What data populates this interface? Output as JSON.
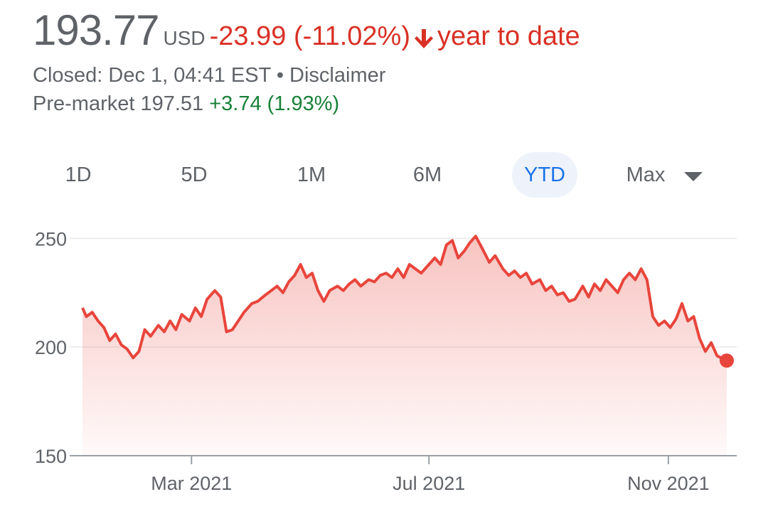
{
  "quote": {
    "price": "193.77",
    "currency": "USD",
    "change": "-23.99 (-11.02%)",
    "period": "year to date",
    "closed": "Closed: Dec 1, 04:41 EST",
    "separator": "•",
    "disclaimer": "Disclaimer",
    "premarket_label": "Pre-market 197.51",
    "premarket_change": "+3.74 (1.93%)"
  },
  "colors": {
    "negative": "#d93025",
    "positive": "#188038",
    "active_tab": "#1a73e8",
    "line": "#e8453c"
  },
  "tabs": [
    {
      "label": "1D"
    },
    {
      "label": "5D"
    },
    {
      "label": "1M"
    },
    {
      "label": "6M"
    },
    {
      "label": "YTD",
      "active": true
    },
    {
      "label": "Max"
    }
  ],
  "chart_data": {
    "type": "area",
    "ylim": [
      150,
      255
    ],
    "yticks": [
      {
        "value": 250,
        "label": "250"
      },
      {
        "value": 200,
        "label": "200"
      },
      {
        "value": 150,
        "label": "150"
      }
    ],
    "xlim": [
      "2021-01-04",
      "2021-12-01"
    ],
    "xticks": [
      {
        "date": "2021-03-01",
        "label": "Mar 2021"
      },
      {
        "date": "2021-07-01",
        "label": "Jul 2021"
      },
      {
        "date": "2021-11-01",
        "label": "Nov 2021"
      }
    ],
    "grid": true,
    "series": [
      {
        "values": [
          [
            "2021-01-04",
            218
          ],
          [
            "2021-01-06",
            214
          ],
          [
            "2021-01-09",
            216
          ],
          [
            "2021-01-12",
            212
          ],
          [
            "2021-01-15",
            209
          ],
          [
            "2021-01-18",
            203
          ],
          [
            "2021-01-21",
            206
          ],
          [
            "2021-01-24",
            201
          ],
          [
            "2021-01-27",
            199
          ],
          [
            "2021-01-30",
            195
          ],
          [
            "2021-02-02",
            198
          ],
          [
            "2021-02-05",
            208
          ],
          [
            "2021-02-08",
            205
          ],
          [
            "2021-02-12",
            210
          ],
          [
            "2021-02-15",
            207
          ],
          [
            "2021-02-18",
            212
          ],
          [
            "2021-02-21",
            208
          ],
          [
            "2021-02-24",
            215
          ],
          [
            "2021-02-28",
            212
          ],
          [
            "2021-03-03",
            218
          ],
          [
            "2021-03-06",
            214
          ],
          [
            "2021-03-09",
            222
          ],
          [
            "2021-03-13",
            226
          ],
          [
            "2021-03-16",
            223
          ],
          [
            "2021-03-19",
            207
          ],
          [
            "2021-03-22",
            208
          ],
          [
            "2021-03-25",
            212
          ],
          [
            "2021-03-28",
            216
          ],
          [
            "2021-04-01",
            220
          ],
          [
            "2021-04-04",
            221
          ],
          [
            "2021-04-08",
            224
          ],
          [
            "2021-04-11",
            226
          ],
          [
            "2021-04-14",
            228
          ],
          [
            "2021-04-17",
            225
          ],
          [
            "2021-04-20",
            230
          ],
          [
            "2021-04-23",
            233
          ],
          [
            "2021-04-26",
            238
          ],
          [
            "2021-04-29",
            232
          ],
          [
            "2021-05-02",
            234
          ],
          [
            "2021-05-05",
            226
          ],
          [
            "2021-05-08",
            221
          ],
          [
            "2021-05-11",
            226
          ],
          [
            "2021-05-15",
            228
          ],
          [
            "2021-05-18",
            226
          ],
          [
            "2021-05-21",
            229
          ],
          [
            "2021-05-24",
            231
          ],
          [
            "2021-05-27",
            228
          ],
          [
            "2021-05-31",
            231
          ],
          [
            "2021-06-03",
            230
          ],
          [
            "2021-06-06",
            233
          ],
          [
            "2021-06-09",
            234
          ],
          [
            "2021-06-12",
            232
          ],
          [
            "2021-06-15",
            236
          ],
          [
            "2021-06-18",
            232
          ],
          [
            "2021-06-21",
            238
          ],
          [
            "2021-06-24",
            236
          ],
          [
            "2021-06-27",
            234
          ],
          [
            "2021-07-01",
            238
          ],
          [
            "2021-07-04",
            241
          ],
          [
            "2021-07-07",
            238
          ],
          [
            "2021-07-10",
            247
          ],
          [
            "2021-07-13",
            249
          ],
          [
            "2021-07-16",
            241
          ],
          [
            "2021-07-19",
            244
          ],
          [
            "2021-07-22",
            248
          ],
          [
            "2021-07-25",
            251
          ],
          [
            "2021-07-28",
            246
          ],
          [
            "2021-08-01",
            239
          ],
          [
            "2021-08-04",
            242
          ],
          [
            "2021-08-08",
            236
          ],
          [
            "2021-08-11",
            233
          ],
          [
            "2021-08-14",
            235
          ],
          [
            "2021-08-17",
            232
          ],
          [
            "2021-08-20",
            234
          ],
          [
            "2021-08-23",
            229
          ],
          [
            "2021-08-27",
            231
          ],
          [
            "2021-08-30",
            226
          ],
          [
            "2021-09-02",
            228
          ],
          [
            "2021-09-05",
            224
          ],
          [
            "2021-09-08",
            225
          ],
          [
            "2021-09-11",
            221
          ],
          [
            "2021-09-14",
            222
          ],
          [
            "2021-09-18",
            228
          ],
          [
            "2021-09-21",
            223
          ],
          [
            "2021-09-24",
            229
          ],
          [
            "2021-09-27",
            226
          ],
          [
            "2021-09-30",
            231
          ],
          [
            "2021-10-03",
            228
          ],
          [
            "2021-10-06",
            225
          ],
          [
            "2021-10-09",
            231
          ],
          [
            "2021-10-12",
            234
          ],
          [
            "2021-10-15",
            231
          ],
          [
            "2021-10-18",
            236
          ],
          [
            "2021-10-21",
            231
          ],
          [
            "2021-10-24",
            214
          ],
          [
            "2021-10-27",
            210
          ],
          [
            "2021-10-30",
            212
          ],
          [
            "2021-11-02",
            209
          ],
          [
            "2021-11-05",
            213
          ],
          [
            "2021-11-08",
            220
          ],
          [
            "2021-11-11",
            212
          ],
          [
            "2021-11-14",
            214
          ],
          [
            "2021-11-17",
            204
          ],
          [
            "2021-11-20",
            198
          ],
          [
            "2021-11-23",
            202
          ],
          [
            "2021-11-26",
            196
          ],
          [
            "2021-12-01",
            193.77
          ]
        ]
      }
    ]
  }
}
